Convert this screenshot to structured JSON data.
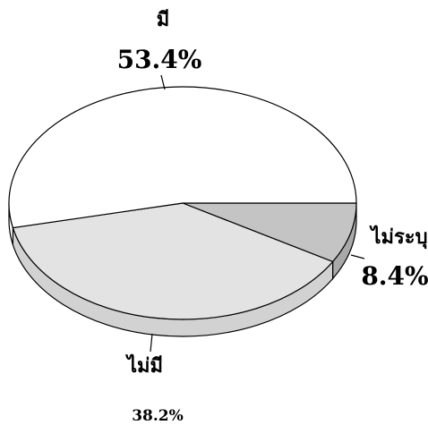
{
  "chart_data": {
    "type": "pie",
    "style": "3d",
    "slices": [
      {
        "label": "มี",
        "value": 53.4,
        "value_label": "53.4%",
        "color": "#ffffff"
      },
      {
        "label": "ไม่มี",
        "value": 38.2,
        "value_label": "38.2%",
        "color": "#e3e3e3"
      },
      {
        "label": "ไม่ระบุ",
        "value": 8.4,
        "value_label": "8.4%",
        "color": "#c4c4c4"
      }
    ],
    "side_colors": [
      "#ffffff",
      "#d2d2d2",
      "#a9a9a9"
    ]
  }
}
